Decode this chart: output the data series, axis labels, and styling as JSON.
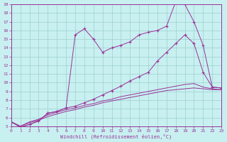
{
  "xlabel": "Windchill (Refroidissement éolien,°C)",
  "bg_color": "#c8f0f0",
  "grid_color": "#9ecece",
  "line_color": "#993399",
  "xlim": [
    0,
    23
  ],
  "ylim": [
    5,
    19
  ],
  "xticks": [
    0,
    1,
    2,
    3,
    4,
    5,
    6,
    7,
    8,
    9,
    10,
    11,
    12,
    13,
    14,
    15,
    16,
    17,
    18,
    19,
    20,
    21,
    22,
    23
  ],
  "yticks": [
    5,
    6,
    7,
    8,
    9,
    10,
    11,
    12,
    13,
    14,
    15,
    16,
    17,
    18,
    19
  ],
  "curve1_x": [
    0,
    1,
    2,
    3,
    4,
    5,
    6,
    7,
    8,
    9,
    10,
    11,
    12,
    13,
    14,
    15,
    16,
    17,
    18,
    19,
    20,
    21,
    22,
    23
  ],
  "curve1_y": [
    5.5,
    4.9,
    5.2,
    5.6,
    6.5,
    6.7,
    7.1,
    15.5,
    16.2,
    15.0,
    13.5,
    14.0,
    14.3,
    14.7,
    15.5,
    15.8,
    16.0,
    16.5,
    19.3,
    19.0,
    17.0,
    14.3,
    9.5,
    9.4
  ],
  "curve2_x": [
    0,
    1,
    2,
    3,
    4,
    5,
    6,
    7,
    8,
    9,
    10,
    11,
    12,
    13,
    14,
    15,
    16,
    17,
    18,
    19,
    20,
    21,
    22,
    23
  ],
  "curve2_y": [
    5.5,
    4.9,
    5.2,
    5.6,
    6.5,
    6.7,
    7.1,
    7.3,
    7.7,
    8.1,
    8.6,
    9.1,
    9.6,
    10.2,
    10.7,
    11.2,
    12.5,
    13.5,
    14.5,
    15.5,
    14.5,
    11.2,
    9.5,
    9.4
  ],
  "curve3_x": [
    0,
    1,
    2,
    3,
    4,
    5,
    6,
    7,
    8,
    9,
    10,
    11,
    12,
    13,
    14,
    15,
    16,
    17,
    18,
    19,
    20,
    21,
    22,
    23
  ],
  "curve3_y": [
    5.5,
    5.0,
    5.5,
    5.8,
    6.3,
    6.6,
    6.9,
    7.1,
    7.4,
    7.6,
    7.9,
    8.1,
    8.4,
    8.6,
    8.8,
    9.0,
    9.2,
    9.4,
    9.6,
    9.8,
    9.9,
    9.5,
    9.3,
    9.2
  ],
  "curve4_x": [
    0,
    1,
    2,
    3,
    4,
    5,
    6,
    7,
    8,
    9,
    10,
    11,
    12,
    13,
    14,
    15,
    16,
    17,
    18,
    19,
    20,
    21,
    22,
    23
  ],
  "curve4_y": [
    5.5,
    5.0,
    5.4,
    5.7,
    6.1,
    6.4,
    6.7,
    6.9,
    7.2,
    7.4,
    7.7,
    7.9,
    8.1,
    8.3,
    8.5,
    8.7,
    8.9,
    9.1,
    9.2,
    9.3,
    9.4,
    9.3,
    9.2,
    9.2
  ]
}
